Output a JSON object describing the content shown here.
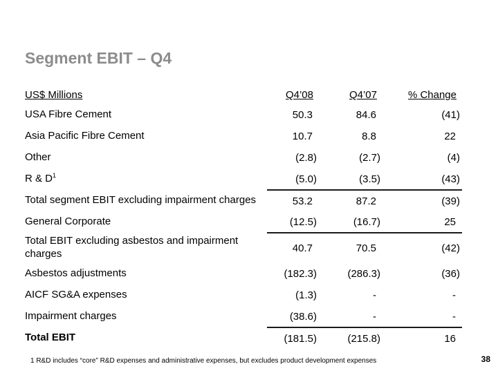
{
  "slide": {
    "title": "Segment EBIT – Q4",
    "footnote": "1 R&D includes “core” R&D expenses and administrative expenses, but excludes product development expenses",
    "page_number": "38"
  },
  "table": {
    "headers": {
      "label": "US$ Millions",
      "q4_08": "Q4’08",
      "q4_07": "Q4’07",
      "pct_change": "% Change"
    },
    "rows": [
      {
        "label": "USA Fibre Cement",
        "q4_08": "50.3",
        "q4_07": "84.6",
        "pct_change": "(41)"
      },
      {
        "label": "Asia Pacific Fibre Cement",
        "q4_08": "10.7",
        "q4_07": "8.8",
        "pct_change": "22"
      },
      {
        "label": "Other",
        "q4_08": "(2.8)",
        "q4_07": "(2.7)",
        "pct_change": "(4)"
      },
      {
        "label": "R & D",
        "label_sup": "1",
        "q4_08": "(5.0)",
        "q4_07": "(3.5)",
        "pct_change": "(43)"
      },
      {
        "label": "Total segment EBIT excluding impairment charges",
        "q4_08": "53.2",
        "q4_07": "87.2",
        "pct_change": "(39)"
      },
      {
        "label": "General Corporate",
        "q4_08": "(12.5)",
        "q4_07": "(16.7)",
        "pct_change": "25"
      },
      {
        "label": "Total EBIT excluding asbestos and impairment charges",
        "q4_08": "40.7",
        "q4_07": "70.5",
        "pct_change": "(42)"
      },
      {
        "label": "Asbestos adjustments",
        "q4_08": "(182.3)",
        "q4_07": "(286.3)",
        "pct_change": "(36)"
      },
      {
        "label": "AICF SG&A expenses",
        "q4_08": "(1.3)",
        "q4_07": "-",
        "pct_change": "-"
      },
      {
        "label": "Impairment charges",
        "q4_08": "(38.6)",
        "q4_07": "-",
        "pct_change": "-"
      },
      {
        "label": "Total EBIT",
        "q4_08": "(181.5)",
        "q4_07": "(215.8)",
        "pct_change": "16"
      }
    ]
  },
  "colors": {
    "title_gray": "#8c8c8c",
    "rule_black": "#1a1a1a",
    "background": "#ffffff"
  }
}
